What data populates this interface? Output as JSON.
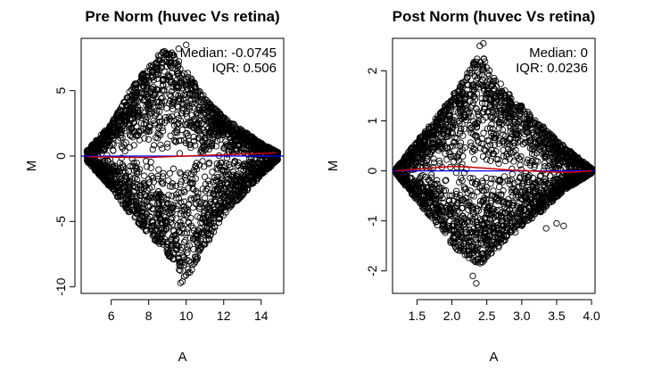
{
  "chart_data": [
    {
      "type": "scatter",
      "title": "Pre Norm (huvec Vs retina)",
      "xlabel": "A",
      "ylabel": "M",
      "xlim": [
        4.4,
        15.2
      ],
      "ylim": [
        -10.5,
        9.0
      ],
      "xticks": [
        6,
        8,
        10,
        12,
        14
      ],
      "yticks": [
        -10,
        -5,
        0,
        5
      ],
      "annotations": [
        "Median: -0.0745",
        "IQR: 0.506"
      ],
      "median": -0.0745,
      "iqr": 0.506,
      "baseline": {
        "y": 0,
        "color": "#0000ff"
      },
      "loess": {
        "color": "#cc0000",
        "x": [
          4.8,
          6,
          7,
          8,
          9,
          10,
          11,
          12,
          13,
          14,
          14.8
        ],
        "y": [
          -0.05,
          -0.08,
          -0.1,
          -0.1,
          -0.05,
          0,
          0.05,
          0.1,
          0.15,
          0.2,
          0.25
        ]
      },
      "point_cloud": {
        "marker": "open-circle",
        "color": "#000000",
        "envelope_x": [
          4.7,
          6,
          7,
          8,
          9,
          10,
          11,
          12,
          13,
          14,
          14.9
        ],
        "envelope_upper": [
          0.4,
          2.5,
          5,
          7,
          8.5,
          6.5,
          4.5,
          3,
          2,
          1,
          0.3
        ],
        "envelope_lower": [
          -0.4,
          -2.5,
          -4.5,
          -6,
          -7.5,
          -9.5,
          -7,
          -4.5,
          -3,
          -1.5,
          -0.3
        ],
        "outliers": [
          [
            9.8,
            -9.6
          ],
          [
            9.9,
            -9.2
          ],
          [
            10.1,
            -8.9
          ],
          [
            10.3,
            -8.7
          ],
          [
            9.7,
            -9.7
          ],
          [
            9.6,
            8.2
          ],
          [
            10.0,
            8.5
          ]
        ]
      }
    },
    {
      "type": "scatter",
      "title": "Post Norm (huvec Vs retina)",
      "xlabel": "A",
      "ylabel": "M",
      "xlim": [
        1.15,
        4.05
      ],
      "ylim": [
        -2.45,
        2.65
      ],
      "xticks": [
        1.5,
        2.0,
        2.5,
        3.0,
        3.5,
        4.0
      ],
      "xtick_labels": [
        "1.5",
        "2.0",
        "2.5",
        "3.0",
        "3.5",
        "4.0"
      ],
      "yticks": [
        -2,
        -1,
        0,
        1,
        2
      ],
      "annotations": [
        "Median: 0",
        "IQR: 0.0236"
      ],
      "median": 0,
      "iqr": 0.0236,
      "baseline": {
        "y": 0,
        "color": "#0000ff"
      },
      "loess": {
        "color": "#cc0000",
        "x": [
          1.2,
          1.5,
          1.8,
          2.0,
          2.2,
          2.5,
          2.8,
          3.1,
          3.4,
          3.7,
          4.0
        ],
        "y": [
          0.0,
          0.03,
          0.07,
          0.09,
          0.08,
          0.05,
          0.02,
          0.0,
          -0.02,
          -0.03,
          0.0
        ]
      },
      "point_cloud": {
        "marker": "open-circle",
        "color": "#000000",
        "envelope_x": [
          1.2,
          1.5,
          1.8,
          2.0,
          2.2,
          2.4,
          2.6,
          2.8,
          3.0,
          3.3,
          3.6,
          4.0
        ],
        "envelope_upper": [
          0.05,
          0.6,
          1.1,
          1.5,
          1.9,
          2.4,
          1.9,
          1.6,
          1.3,
          0.9,
          0.5,
          0.05
        ],
        "envelope_lower": [
          -0.05,
          -0.6,
          -1.1,
          -1.5,
          -1.7,
          -1.9,
          -1.6,
          -1.4,
          -1.1,
          -0.8,
          -0.4,
          -0.05
        ],
        "outliers": [
          [
            2.3,
            -2.1
          ],
          [
            2.35,
            -2.25
          ],
          [
            2.4,
            2.5
          ],
          [
            2.45,
            2.55
          ],
          [
            3.35,
            -1.15
          ],
          [
            3.5,
            -1.05
          ],
          [
            3.6,
            -1.1
          ]
        ]
      }
    }
  ]
}
